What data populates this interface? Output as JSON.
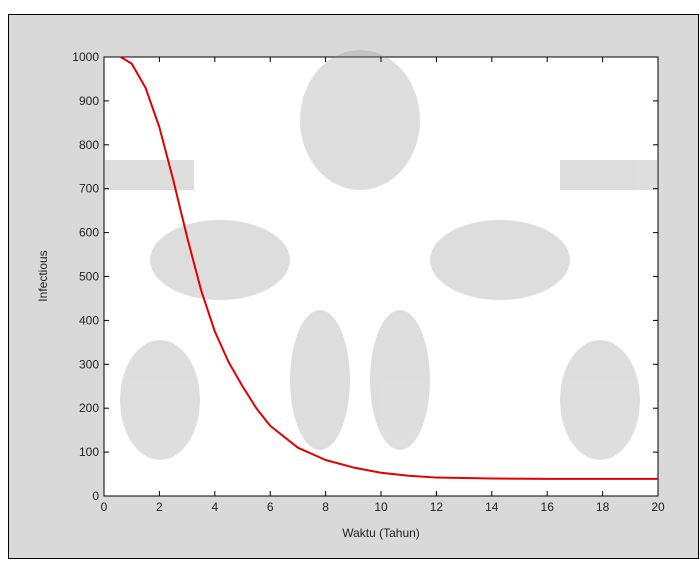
{
  "chart_data": {
    "type": "line",
    "x_label": "Waktu (Tahun)",
    "y_label": "Infectious",
    "x": [
      0.6,
      1,
      1.5,
      2,
      2.5,
      3,
      3.5,
      4,
      4.5,
      5,
      5.5,
      6,
      7,
      8,
      9,
      10,
      11,
      12,
      14,
      16,
      18,
      20
    ],
    "series": [
      {
        "name": "Infectious",
        "color": "#e00000",
        "values": [
          1000,
          985,
          930,
          840,
          720,
          590,
          470,
          375,
          305,
          250,
          200,
          160,
          110,
          82,
          65,
          53,
          46,
          42,
          40,
          39,
          39,
          39
        ]
      }
    ],
    "xlim": [
      0,
      20
    ],
    "xticks": [
      0,
      2,
      4,
      6,
      8,
      10,
      12,
      14,
      16,
      18,
      20
    ],
    "ylim": [
      0,
      1000
    ],
    "yticks": [
      0,
      100,
      200,
      300,
      400,
      500,
      600,
      700,
      800,
      900,
      1000
    ]
  }
}
